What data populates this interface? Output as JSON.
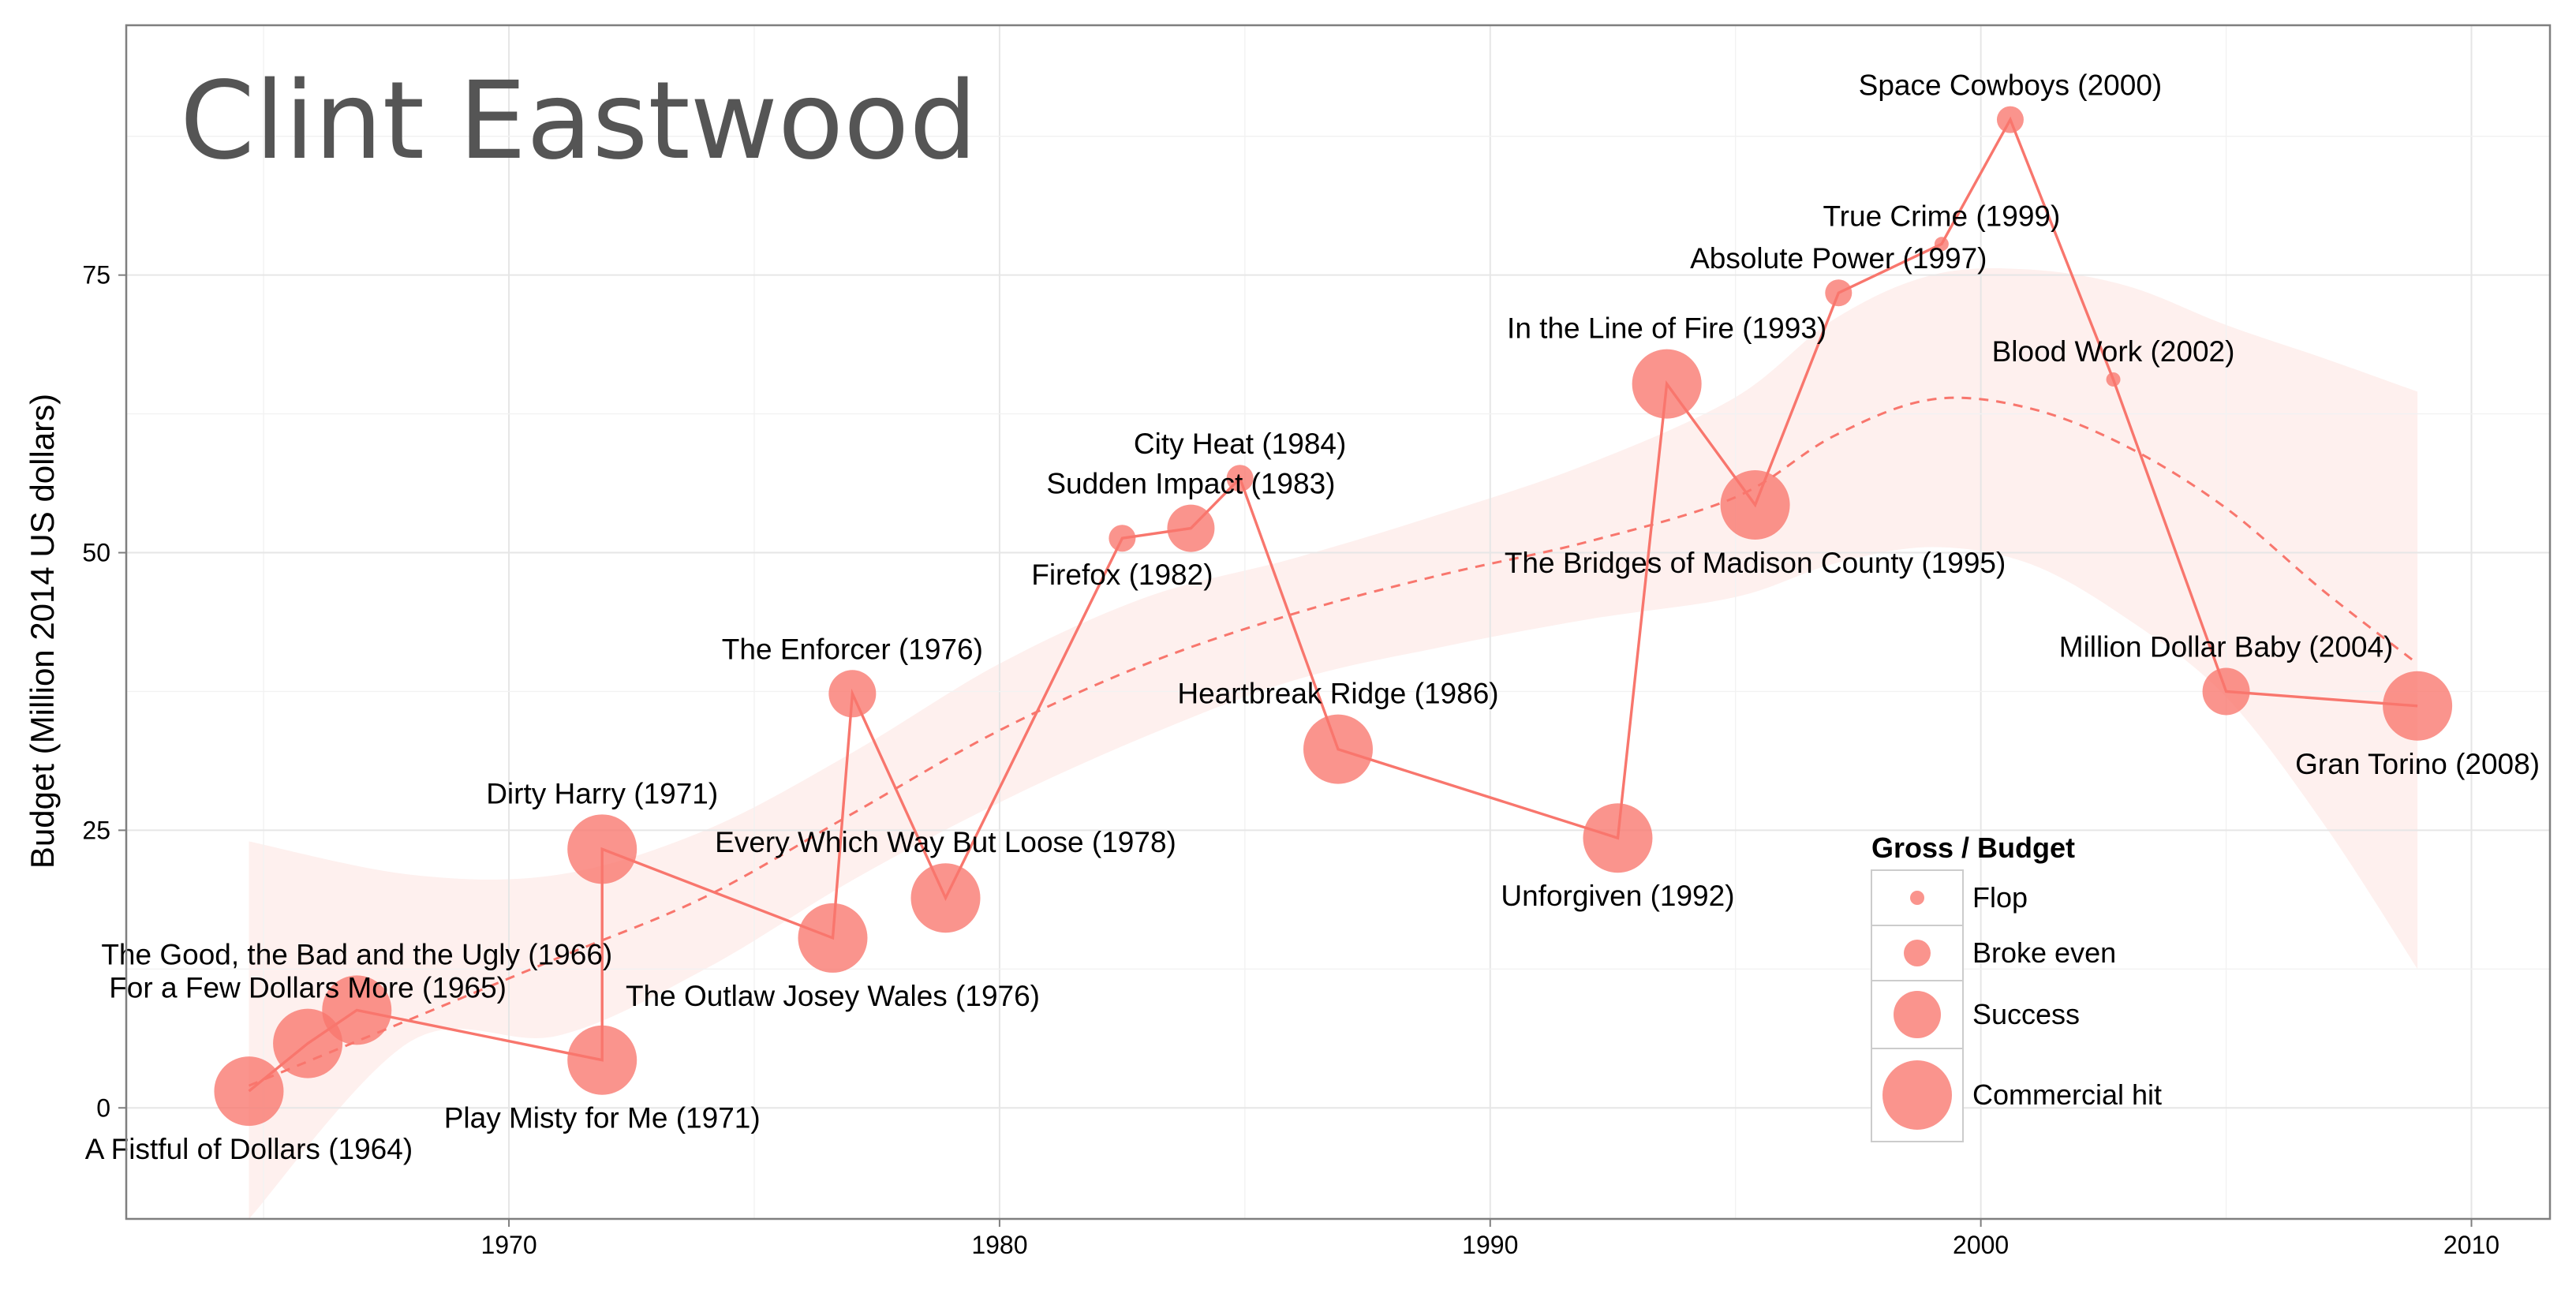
{
  "chart_data": {
    "type": "scatter",
    "title": "Clint Eastwood",
    "xlabel": "",
    "ylabel": "Budget (Million 2014 US dollars)",
    "xlim": [
      1962.2,
      2011.6
    ],
    "ylim": [
      -10,
      97.5
    ],
    "x_ticks": [
      1970,
      1980,
      1990,
      2000,
      2010
    ],
    "y_ticks": [
      0,
      25,
      50,
      75
    ],
    "grid": true,
    "colors": {
      "point": "#F8766D",
      "line": "#F8766D",
      "ribbon": "#FEF0EE",
      "title": "#555555"
    },
    "legend": {
      "title": "Gross / Budget",
      "position": "inside-bottom-right",
      "items": [
        {
          "label": "Flop",
          "size": 1
        },
        {
          "label": "Broke even",
          "size": 2
        },
        {
          "label": "Success",
          "size": 3
        },
        {
          "label": "Commercial hit",
          "size": 4
        }
      ]
    },
    "points": [
      {
        "label": "A Fistful of Dollars (1964)",
        "x": 1964.7,
        "y": 1.5,
        "size": 4,
        "pos": "below"
      },
      {
        "label": "For a Few Dollars More (1965)",
        "x": 1965.9,
        "y": 5.8,
        "size": 4,
        "pos": "above"
      },
      {
        "label": "The Good, the Bad and the Ugly (1966)",
        "x": 1966.9,
        "y": 8.8,
        "size": 4,
        "pos": "above"
      },
      {
        "label": "Play Misty for Me (1971)",
        "x": 1971.9,
        "y": 4.3,
        "size": 4,
        "pos": "below"
      },
      {
        "label": "Dirty Harry (1971)",
        "x": 1971.9,
        "y": 23.3,
        "size": 4,
        "pos": "above"
      },
      {
        "label": "The Outlaw Josey Wales (1976)",
        "x": 1976.6,
        "y": 15.3,
        "size": 4,
        "pos": "below"
      },
      {
        "label": "The Enforcer (1976)",
        "x": 1977.0,
        "y": 37.3,
        "size": 3,
        "pos": "above"
      },
      {
        "label": "Every Which Way But Loose (1978)",
        "x": 1978.9,
        "y": 18.9,
        "size": 4,
        "pos": "above"
      },
      {
        "label": "Firefox (1982)",
        "x": 1982.5,
        "y": 51.3,
        "size": 2,
        "pos": "below"
      },
      {
        "label": "Sudden Impact (1983)",
        "x": 1983.9,
        "y": 52.2,
        "size": 3,
        "pos": "above"
      },
      {
        "label": "City Heat (1984)",
        "x": 1984.9,
        "y": 56.7,
        "size": 2,
        "pos": "above"
      },
      {
        "label": "Heartbreak Ridge (1986)",
        "x": 1986.9,
        "y": 32.3,
        "size": 4,
        "pos": "above"
      },
      {
        "label": "Unforgiven (1992)",
        "x": 1992.6,
        "y": 24.3,
        "size": 4,
        "pos": "below"
      },
      {
        "label": "In the Line of Fire (1993)",
        "x": 1993.6,
        "y": 65.2,
        "size": 4,
        "pos": "above"
      },
      {
        "label": "The Bridges of Madison County (1995)",
        "x": 1995.4,
        "y": 54.3,
        "size": 4,
        "pos": "below"
      },
      {
        "label": "Absolute Power (1997)",
        "x": 1997.1,
        "y": 73.4,
        "size": 2,
        "pos": "above"
      },
      {
        "label": "True Crime (1999)",
        "x": 1999.2,
        "y": 77.8,
        "size": 1,
        "pos": "above"
      },
      {
        "label": "Space Cowboys (2000)",
        "x": 2000.6,
        "y": 89.0,
        "size": 2,
        "pos": "above"
      },
      {
        "label": "Blood Work (2002)",
        "x": 2002.7,
        "y": 65.6,
        "size": 1,
        "pos": "above"
      },
      {
        "label": "Million Dollar Baby (2004)",
        "x": 2005.0,
        "y": 37.5,
        "size": 3,
        "pos": "above"
      },
      {
        "label": "Gran Torino (2008)",
        "x": 2008.9,
        "y": 36.2,
        "size": 4,
        "pos": "below"
      }
    ],
    "trend": {
      "x": [
        1964.7,
        1968,
        1971,
        1974,
        1977,
        1980,
        1983,
        1986,
        1989,
        1992,
        1995,
        1997,
        1999,
        2001,
        2003,
        2005,
        2007,
        2008.9
      ],
      "y": [
        2.0,
        8.0,
        13.5,
        19.0,
        26.5,
        34.0,
        40.0,
        44.5,
        48.0,
        51.0,
        55.0,
        60.5,
        63.8,
        63.0,
        59.5,
        54.0,
        46.5,
        40.0
      ],
      "lower": [
        -10,
        6.0,
        6.5,
        12.5,
        20.5,
        27.5,
        33.5,
        38.5,
        41.5,
        44.0,
        46.0,
        49.0,
        50.5,
        49.0,
        44.0,
        37.0,
        25.5,
        12.5
      ],
      "upper": [
        24.0,
        21.0,
        21.0,
        25.0,
        32.0,
        40.0,
        46.0,
        49.5,
        53.5,
        58.0,
        64.0,
        71.0,
        75.0,
        75.5,
        74.0,
        70.5,
        67.5,
        64.5
      ]
    }
  }
}
